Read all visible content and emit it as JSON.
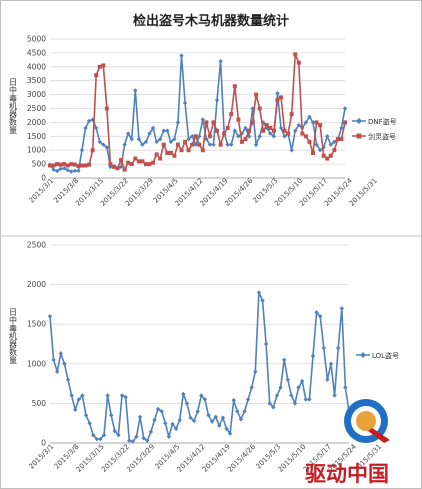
{
  "colors": {
    "blue": "#4f81bd",
    "red": "#c0504d",
    "grid": "#d9d9d9",
    "logo_red": "#c61d23",
    "logo_blue": "#1f6fc5"
  },
  "watermark": {
    "text": "驱动中国"
  },
  "chart_data": [
    {
      "type": "line",
      "title": "检出盗号木马机器数量统计",
      "ylabel": "日中毒机器数量",
      "ylim": [
        0,
        5000
      ],
      "yticks": [
        0,
        500,
        1000,
        1500,
        2000,
        2500,
        3000,
        3500,
        4000,
        4500,
        5000
      ],
      "xticklabels": [
        "2015/3/1",
        "2015/3/8",
        "2015/3/15",
        "2015/3/22",
        "2015/3/29",
        "2015/4/5",
        "2015/4/12",
        "2015/4/19",
        "2015/4/26",
        "2015/5/3",
        "2015/5/10",
        "2015/5/17",
        "2015/5/24",
        "2015/5/31"
      ],
      "legend_position": "right",
      "series": [
        {
          "name": "DNF盗号",
          "color": "#4f81bd",
          "marker": "diamond",
          "values": [
            480,
            300,
            250,
            330,
            350,
            280,
            230,
            260,
            260,
            1000,
            1800,
            2050,
            2100,
            1800,
            1300,
            1200,
            1100,
            400,
            420,
            350,
            400,
            1200,
            1600,
            1400,
            3150,
            1400,
            1200,
            1300,
            1600,
            1800,
            1300,
            1400,
            1700,
            1700,
            1300,
            1400,
            2000,
            4400,
            2700,
            1400,
            1500,
            1200,
            1500,
            2100,
            1400,
            1200,
            1200,
            2800,
            4200,
            1600,
            1200,
            1200,
            1700,
            1500,
            1600,
            1800,
            1500,
            2500,
            1200,
            1500,
            2000,
            1800,
            1600,
            1500,
            3050,
            1800,
            1500,
            1600,
            1000,
            1700,
            1900,
            1800,
            2000,
            2200,
            2000,
            1200,
            1000,
            1100,
            1500,
            1200,
            1300,
            1400,
            1800,
            2500
          ]
        },
        {
          "name": "剑灵盗号",
          "color": "#c0504d",
          "marker": "square",
          "values": [
            450,
            450,
            500,
            480,
            500,
            450,
            500,
            480,
            430,
            450,
            450,
            480,
            1000,
            3700,
            4000,
            4050,
            2500,
            500,
            400,
            350,
            650,
            300,
            550,
            500,
            700,
            600,
            600,
            500,
            500,
            550,
            850,
            700,
            1200,
            900,
            900,
            800,
            1200,
            1000,
            1300,
            1000,
            1200,
            1500,
            1200,
            1000,
            2000,
            1500,
            2000,
            1700,
            1200,
            1600,
            1800,
            2300,
            3300,
            2100,
            1300,
            1400,
            1700,
            2000,
            3000,
            2500,
            1700,
            1900,
            1800,
            1700,
            2800,
            2900,
            1700,
            1600,
            2300,
            4450,
            4150,
            1600,
            1500,
            1300,
            900,
            2000,
            1900,
            800,
            700,
            800,
            1000,
            1400,
            1400,
            2000
          ]
        }
      ]
    },
    {
      "type": "line",
      "title": "",
      "ylabel": "日中毒机器数量",
      "ylim": [
        0,
        2500
      ],
      "yticks": [
        0,
        500,
        1000,
        1500,
        2000,
        2500
      ],
      "xticklabels": [
        "2015/3/1",
        "2015/3/8",
        "2015/3/15",
        "2015/3/22",
        "2015/3/29",
        "2015/4/5",
        "2015/4/12",
        "2015/4/19",
        "2015/4/26",
        "2015/5/3",
        "2015/5/10",
        "2015/5/17",
        "2015/5/24",
        "2015/5/31"
      ],
      "legend_position": "right",
      "series": [
        {
          "name": "LOL盗号",
          "color": "#4f81bd",
          "marker": "diamond",
          "values": [
            1600,
            1050,
            900,
            1130,
            1000,
            800,
            600,
            420,
            550,
            600,
            350,
            250,
            100,
            50,
            50,
            100,
            600,
            350,
            150,
            100,
            600,
            580,
            30,
            20,
            80,
            330,
            60,
            30,
            140,
            290,
            430,
            400,
            250,
            80,
            240,
            180,
            290,
            620,
            500,
            320,
            280,
            400,
            600,
            550,
            350,
            270,
            330,
            220,
            320,
            180,
            120,
            540,
            400,
            300,
            400,
            550,
            700,
            900,
            1900,
            1800,
            1250,
            500,
            450,
            600,
            700,
            1050,
            800,
            600,
            500,
            700,
            780,
            550,
            550,
            1100,
            1650,
            1600,
            1200,
            800,
            1000,
            600,
            1200,
            1700,
            700,
            400
          ]
        }
      ]
    }
  ]
}
